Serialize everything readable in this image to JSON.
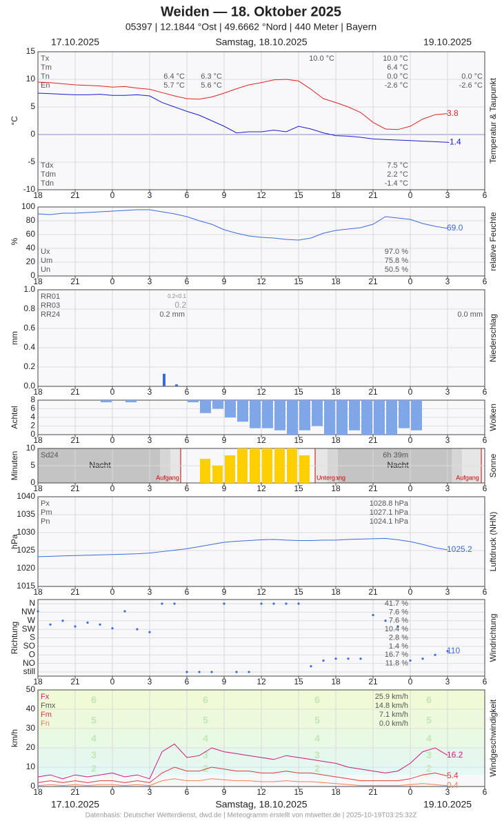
{
  "header": {
    "title": "Weiden  —  18. Oktober 2025",
    "subtitle": "05397  |  12.1844 °Ost  |  49.6662 °Nord  |  440 Meter  |  Bayern",
    "dates": [
      "17.10.2025",
      "Samstag, 18.10.2025",
      "19.10.2025"
    ]
  },
  "footer": "Datenbasis: Deutscher Wetterdienst, dwd.de | Meteogramm erstellt von mtwetter.de | 2025-10-19T03:25:32Z",
  "x_axis": {
    "xlim": [
      0,
      36
    ],
    "xticks": [
      {
        "value": 0,
        "label": "18"
      },
      {
        "value": 3,
        "label": "21"
      },
      {
        "value": 6,
        "label": "0"
      },
      {
        "value": 9,
        "label": "3"
      },
      {
        "value": 12,
        "label": "6"
      },
      {
        "value": 15,
        "label": "9"
      },
      {
        "value": 18,
        "label": "12"
      },
      {
        "value": 21,
        "label": "15"
      },
      {
        "value": 24,
        "label": "18"
      },
      {
        "value": 27,
        "label": "21"
      },
      {
        "value": 30,
        "label": "0"
      },
      {
        "value": 33,
        "label": "3"
      },
      {
        "value": 36,
        "label": "6"
      }
    ],
    "x": [
      0,
      1,
      2,
      3,
      4,
      5,
      6,
      7,
      8,
      9,
      10,
      11,
      12,
      13,
      14,
      15,
      16,
      17,
      18,
      19,
      20,
      21,
      22,
      23,
      24,
      25,
      26,
      27,
      28,
      29,
      30,
      31,
      32,
      33
    ]
  },
  "chart_data": [
    {
      "type": "line",
      "ylabel": "°C",
      "side_label": "Temperatur & Taupunkt",
      "ylim": [
        -10,
        15
      ],
      "yticks": [
        -10,
        -5,
        0,
        5,
        10,
        15
      ],
      "grid": true,
      "series": [
        {
          "color": "#e02020",
          "label_last": true,
          "values": [
            9.5,
            9.4,
            9.2,
            9.0,
            8.9,
            8.8,
            8.6,
            8.7,
            8.4,
            8.2,
            7.6,
            7.0,
            6.5,
            6.4,
            6.8,
            7.5,
            8.3,
            9.0,
            9.4,
            9.9,
            10.0,
            9.7,
            8.2,
            6.5,
            5.8,
            5.0,
            4.0,
            2.2,
            1.0,
            0.9,
            1.5,
            2.8,
            3.6,
            3.8
          ]
        },
        {
          "color": "#1a1ad0",
          "label_last": true,
          "values": [
            7.5,
            7.4,
            7.3,
            7.2,
            7.2,
            7.3,
            7.1,
            7.1,
            7.2,
            7.0,
            5.8,
            5.0,
            4.2,
            3.5,
            2.5,
            1.5,
            0.3,
            0.5,
            0.5,
            0.8,
            0.5,
            1.5,
            1.0,
            0.3,
            -0.2,
            -0.3,
            -0.5,
            -0.8,
            -0.9,
            -1.0,
            -1.1,
            -1.2,
            -1.3,
            -1.4
          ]
        }
      ],
      "stats": [
        {
          "label": "Tx",
          "value": "10.0 °C"
        },
        {
          "label": "Tm",
          "value": "6.4 °C"
        },
        {
          "label": "Tn",
          "value": "0.0 °C"
        },
        {
          "label": "En",
          "value": "-2.6 °C"
        }
      ],
      "stats_bottom": [
        {
          "label": "Tdx",
          "value": "7.5 °C"
        },
        {
          "label": "Tdm",
          "value": "2.2 °C"
        },
        {
          "label": "Tdn",
          "value": "-1.4 °C"
        }
      ],
      "annotations": [
        "10.0 °C",
        "6.4 °C",
        "5.7 °C",
        "6.3 °C",
        "5.6 °C",
        "0.0 °C",
        "-2.6 °C"
      ]
    },
    {
      "type": "line",
      "ylabel": "%",
      "side_label": "relative Feuchte",
      "ylim": [
        0,
        100
      ],
      "yticks": [
        0,
        20,
        40,
        60,
        80,
        100
      ],
      "grid": true,
      "series": [
        {
          "color": "#3a6ad8",
          "label_last": true,
          "values": [
            90,
            89,
            91,
            91,
            92,
            93,
            94,
            95,
            96,
            96,
            93,
            90,
            86,
            80,
            75,
            67,
            62,
            58,
            56,
            55,
            53,
            52,
            55,
            62,
            66,
            68,
            70,
            75,
            86,
            84,
            82,
            76,
            72,
            69
          ],
          "value_labels": [
            null,
            null,
            null,
            null,
            null,
            null,
            null,
            null,
            null,
            null,
            null,
            null,
            null,
            null,
            null,
            null,
            null,
            null,
            null,
            null,
            null,
            null,
            null,
            null,
            null,
            null,
            null,
            null,
            null,
            null,
            null,
            null,
            null,
            "69.0"
          ]
        }
      ],
      "stats": [
        {
          "label": "Ux",
          "value": "97.0 %"
        },
        {
          "label": "Um",
          "value": "75.8 %"
        },
        {
          "label": "Un",
          "value": "50.5 %"
        }
      ],
      "stats_at": "bottom"
    },
    {
      "type": "bar",
      "ylabel": "mm",
      "side_label": "Niederschlag",
      "ylim": [
        0,
        1
      ],
      "grid": true,
      "bar_width": 4,
      "yticks": [
        {
          "value": 0,
          "label": "0.0"
        },
        0.2,
        0.4,
        0.6,
        0.8,
        {
          "value": 1,
          "label": "1.0"
        }
      ],
      "series": [
        {
          "color": "#3a6ad8",
          "values": [
            0,
            0,
            0,
            0,
            0,
            0,
            0,
            0,
            0,
            0,
            0.13,
            0.02,
            0,
            0,
            0,
            0,
            0,
            0,
            0,
            0,
            0,
            0,
            0,
            0,
            0,
            0,
            0,
            0,
            0,
            0,
            0,
            0,
            0,
            0
          ]
        }
      ],
      "stats": [
        {
          "label": "RR01"
        },
        {
          "label": "RR03"
        },
        {
          "label": "RR24"
        }
      ],
      "annotations": [
        "0.2<0.1",
        "0.2",
        "0.2 mm",
        "0.0 mm"
      ]
    },
    {
      "type": "bar",
      "ylabel": "Achtel",
      "side_label": "Wolken",
      "ylim": [
        0,
        8
      ],
      "yticks": [
        0,
        2,
        4,
        6,
        8
      ],
      "grid": true,
      "bar_width": 16,
      "bar_from": "top",
      "series": [
        {
          "color": "#7fa6e6",
          "values": [
            0,
            0,
            0,
            0,
            0,
            0.5,
            0,
            0.5,
            0,
            0,
            0,
            0,
            0.5,
            3,
            2,
            4,
            5,
            6.5,
            6.5,
            7,
            8,
            7,
            6,
            8,
            8,
            7,
            8,
            8,
            8,
            6.5,
            7,
            0,
            0,
            0
          ]
        }
      ]
    },
    {
      "type": "bar",
      "ylabel": "Minuten",
      "side_label": "Sonne",
      "ylim": [
        0,
        10
      ],
      "yticks": [
        0,
        5,
        10
      ],
      "grid": true,
      "bar_width": 15,
      "series": [
        {
          "color": "#ffd000",
          "values": [
            0,
            0,
            0,
            0,
            0,
            0,
            0,
            0,
            0,
            0,
            0,
            0,
            0,
            7,
            5,
            8,
            10,
            10,
            10,
            10,
            10,
            8,
            0,
            0,
            0,
            0,
            0,
            0,
            0,
            0,
            0,
            0,
            0,
            0
          ]
        }
      ],
      "stats": [
        {
          "label": "Sd24",
          "value": "6h 39m"
        }
      ],
      "annotations": [
        "Nacht",
        "Nacht",
        "Aufgang",
        "Untergang",
        "Aufgang"
      ]
    },
    {
      "type": "line",
      "ylabel": "hPa",
      "side_label": "Luftdruck (NHN)",
      "ylim": [
        1015,
        1040
      ],
      "yticks": [
        1015,
        1020,
        1025,
        1030,
        1035,
        1040
      ],
      "grid": true,
      "series": [
        {
          "color": "#3a6ad8",
          "label_last": true,
          "values": [
            1023.3,
            1023.4,
            1023.5,
            1023.6,
            1023.7,
            1023.8,
            1023.9,
            1024.0,
            1024.1,
            1024.3,
            1024.7,
            1025.1,
            1025.5,
            1026.1,
            1026.7,
            1027.3,
            1027.6,
            1027.8,
            1028.0,
            1028.1,
            1027.9,
            1027.8,
            1027.8,
            1027.9,
            1027.9,
            1028.1,
            1028.2,
            1028.3,
            1028.4,
            1028.0,
            1027.5,
            1026.7,
            1025.8,
            1025.2
          ]
        }
      ],
      "stats": [
        {
          "label": "Px",
          "value": "1028.8 hPa"
        },
        {
          "label": "Pm",
          "value": "1027.1 hPa"
        },
        {
          "label": "Pn",
          "value": "1024.1 hPa"
        }
      ]
    },
    {
      "type": "scatter",
      "ylabel": "Richtung",
      "side_label": "Windrichtung",
      "ylim": [
        0,
        360
      ],
      "grid": true,
      "yticks": [
        {
          "value": 360,
          "label": "N"
        },
        {
          "value": 315,
          "label": "NW"
        },
        {
          "value": 270,
          "label": "W"
        },
        {
          "value": 225,
          "label": "SW"
        },
        {
          "value": 180,
          "label": "S"
        },
        {
          "value": 135,
          "label": "SO"
        },
        {
          "value": 90,
          "label": "O"
        },
        {
          "value": 45,
          "label": "NO"
        },
        {
          "value": 0,
          "label": "still"
        }
      ],
      "series": [
        {
          "color": "#3a6ad8",
          "label_last": true,
          "values": [
            320,
            250,
            270,
            240,
            260,
            250,
            230,
            320,
            225,
            210,
            360,
            360,
            0,
            0,
            0,
            360,
            0,
            0,
            360,
            360,
            360,
            360,
            30,
            60,
            70,
            70,
            70,
            300,
            270,
            240,
            60,
            70,
            90,
            110
          ]
        }
      ],
      "percentages": [
        "41.7 %",
        "7.6 %",
        "7.6 %",
        "10.4 %",
        "2.8 %",
        "1.4 %",
        "16.7 %",
        "11.8 %"
      ]
    },
    {
      "type": "line",
      "ylabel": "km/h",
      "side_label": "Windgeschwindigkeit",
      "ylim": [
        0,
        50
      ],
      "yticks": [
        0,
        10,
        20,
        30,
        40,
        50
      ],
      "grid": true,
      "bands": [
        {
          "label": "2",
          "from": 6,
          "to": 12,
          "color": "#e4f8f4"
        },
        {
          "label": "3",
          "from": 12,
          "to": 20,
          "color": "#e6f8ee"
        },
        {
          "label": "4",
          "from": 20,
          "to": 29,
          "color": "#e8f9e4"
        },
        {
          "label": "5",
          "from": 29,
          "to": 39,
          "color": "#ecf9dc"
        },
        {
          "label": "6",
          "from": 39,
          "to": 50,
          "color": "#f0fad6"
        }
      ],
      "series": [
        {
          "color": "#c8187a",
          "label_last": true,
          "values": [
            5,
            6,
            4,
            6,
            5,
            6,
            7,
            5,
            6,
            4,
            18,
            22,
            15,
            16,
            20,
            18,
            17,
            16,
            15,
            14,
            16,
            15,
            14,
            13,
            12,
            10,
            9,
            8,
            7,
            8,
            12,
            18,
            20,
            16.2
          ]
        },
        {
          "color": "#e03838",
          "label_last": true,
          "values": [
            2,
            3,
            2,
            3,
            2,
            3,
            3,
            2,
            3,
            2,
            7,
            10,
            8,
            8,
            10,
            9,
            8,
            8,
            7,
            7,
            8,
            7,
            7,
            6,
            5,
            4,
            3,
            3,
            3,
            3,
            4,
            6,
            7,
            5.4
          ]
        },
        {
          "color": "#f08050",
          "label_last": true,
          "values": [
            0.5,
            1,
            0.5,
            1,
            0.5,
            1,
            1,
            0.5,
            1,
            0.5,
            3,
            4,
            3,
            3,
            4,
            3.5,
            3,
            3,
            2.5,
            2.5,
            3,
            2.5,
            2.5,
            2,
            1.5,
            1,
            0.5,
            0.5,
            0.5,
            0.5,
            1,
            1.5,
            1,
            0.4
          ]
        }
      ],
      "stats": [
        {
          "label": "Fx",
          "value": "25.9 km/h",
          "color": "#c8187a"
        },
        {
          "label": "Fmx",
          "value": "14.8 km/h"
        },
        {
          "label": "Fm",
          "value": "7.1 km/h",
          "color": "#e03838"
        },
        {
          "label": "Fn",
          "value": "0.0 km/h",
          "color": "#f08050"
        }
      ]
    }
  ]
}
